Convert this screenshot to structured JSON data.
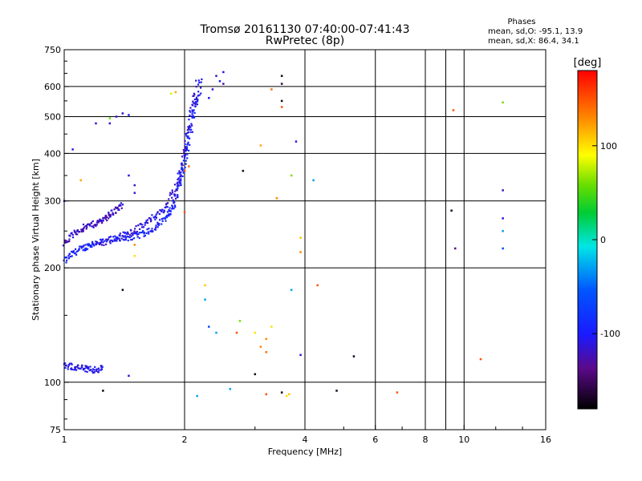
{
  "header": {
    "title_line1": "Tromsø 20161130 07:40:00-07:41:43",
    "title_line2": "RwPretec (8p)",
    "stats_title": "Phases",
    "stats_line1": "mean, sd,O: -95.1, 13.9",
    "stats_line2": "mean, sd,X:  86.4, 34.1"
  },
  "colorbar": {
    "title": "[deg]",
    "min": -180,
    "max": 180,
    "ticks": [
      100,
      0,
      -100
    ],
    "tick_labels": [
      "100",
      "0",
      "-100"
    ]
  },
  "chart_data": {
    "type": "scatter",
    "xlabel": "Frequency [MHz]",
    "ylabel": "Stationary phase Virtual Height [km]",
    "x_scale": "log",
    "y_scale": "log",
    "xlim": [
      1,
      16
    ],
    "ylim": [
      75,
      750
    ],
    "x_ticks": [
      1,
      2,
      4,
      6,
      8,
      9,
      10,
      16
    ],
    "x_tick_labels": [
      "1",
      "2",
      "4",
      "6",
      "8",
      "",
      "10",
      "16"
    ],
    "y_ticks": [
      75,
      100,
      200,
      300,
      400,
      500,
      600,
      750
    ],
    "y_tick_labels": [
      "75",
      "100",
      "200",
      "300",
      "400",
      "500",
      "600",
      "750"
    ],
    "grid": true,
    "color_encoding": "phase [deg]",
    "traces": [
      {
        "name": "O",
        "phase": -95,
        "points": [
          [
            1.0,
            208
          ],
          [
            1.05,
            218
          ],
          [
            1.1,
            224
          ],
          [
            1.15,
            229
          ],
          [
            1.2,
            233
          ],
          [
            1.3,
            237
          ],
          [
            1.4,
            239
          ],
          [
            1.5,
            242
          ],
          [
            1.6,
            247
          ],
          [
            1.7,
            257
          ],
          [
            1.8,
            272
          ],
          [
            1.85,
            285
          ],
          [
            1.9,
            305
          ],
          [
            1.95,
            340
          ],
          [
            2.0,
            380
          ],
          [
            2.05,
            430
          ],
          [
            2.1,
            500
          ],
          [
            2.15,
            560
          ],
          [
            2.2,
            620
          ]
        ]
      },
      {
        "name": "X",
        "phase": -110,
        "points": [
          [
            1.2,
            231
          ],
          [
            1.3,
            236
          ],
          [
            1.4,
            244
          ],
          [
            1.5,
            252
          ],
          [
            1.6,
            262
          ],
          [
            1.7,
            275
          ],
          [
            1.8,
            290
          ],
          [
            1.9,
            320
          ],
          [
            1.95,
            355
          ],
          [
            2.0,
            410
          ],
          [
            2.05,
            470
          ],
          [
            2.1,
            540
          ],
          [
            2.15,
            600
          ]
        ]
      },
      {
        "name": "O-2hop",
        "phase": -120,
        "points": [
          [
            1.0,
            232
          ],
          [
            1.05,
            245
          ],
          [
            1.1,
            253
          ],
          [
            1.15,
            258
          ],
          [
            1.2,
            262
          ],
          [
            1.25,
            268
          ],
          [
            1.3,
            276
          ],
          [
            1.35,
            285
          ],
          [
            1.4,
            292
          ]
        ]
      },
      {
        "name": "E-layer",
        "phase": -105,
        "points": [
          [
            1.0,
            110
          ],
          [
            1.05,
            110
          ],
          [
            1.1,
            109
          ],
          [
            1.15,
            108
          ],
          [
            1.2,
            108
          ],
          [
            1.25,
            109
          ]
        ]
      }
    ],
    "scatter_points": [
      [
        2.4,
        640,
        -120
      ],
      [
        2.5,
        655,
        -110
      ],
      [
        2.45,
        620,
        -100
      ],
      [
        2.5,
        610,
        -130
      ],
      [
        2.35,
        590,
        -115
      ],
      [
        2.3,
        560,
        -105
      ],
      [
        1.3,
        480,
        -110
      ],
      [
        1.2,
        480,
        -115
      ],
      [
        1.35,
        500,
        -110
      ],
      [
        1.4,
        510,
        -120
      ],
      [
        1.45,
        505,
        -100
      ],
      [
        1.3,
        495,
        60
      ],
      [
        1.1,
        340,
        120
      ],
      [
        1.05,
        410,
        -110
      ],
      [
        1.0,
        300,
        -120
      ],
      [
        1.5,
        315,
        -110
      ],
      [
        1.45,
        350,
        -105
      ],
      [
        1.5,
        330,
        -120
      ],
      [
        3.5,
        640,
        -170
      ],
      [
        3.5,
        610,
        -160
      ],
      [
        3.5,
        550,
        -170
      ],
      [
        3.5,
        530,
        150
      ],
      [
        3.3,
        590,
        140
      ],
      [
        3.1,
        420,
        120
      ],
      [
        3.8,
        430,
        -110
      ],
      [
        3.7,
        350,
        60
      ],
      [
        4.2,
        340,
        -30
      ],
      [
        2.0,
        360,
        150
      ],
      [
        2.8,
        360,
        -170
      ],
      [
        2.0,
        280,
        150
      ],
      [
        2.05,
        370,
        140
      ],
      [
        1.9,
        580,
        120
      ],
      [
        1.85,
        575,
        80
      ],
      [
        3.4,
        305,
        130
      ],
      [
        1.5,
        230,
        130
      ],
      [
        1.5,
        215,
        100
      ],
      [
        3.9,
        240,
        110
      ],
      [
        3.9,
        220,
        130
      ],
      [
        3.7,
        175,
        -30
      ],
      [
        4.3,
        180,
        150
      ],
      [
        2.25,
        180,
        110
      ],
      [
        2.25,
        165,
        -30
      ],
      [
        2.3,
        140,
        -60
      ],
      [
        2.4,
        135,
        -30
      ],
      [
        2.7,
        135,
        150
      ],
      [
        2.75,
        145,
        60
      ],
      [
        3.0,
        135,
        100
      ],
      [
        3.3,
        140,
        100
      ],
      [
        3.2,
        130,
        130
      ],
      [
        3.1,
        124,
        130
      ],
      [
        3.2,
        120,
        140
      ],
      [
        3.9,
        118,
        -110
      ],
      [
        5.3,
        117,
        -170
      ],
      [
        3.0,
        105,
        -175
      ],
      [
        1.45,
        104,
        -110
      ],
      [
        1.25,
        95,
        -175
      ],
      [
        2.15,
        92,
        -30
      ],
      [
        2.6,
        96,
        -30
      ],
      [
        3.2,
        93,
        150
      ],
      [
        3.5,
        94,
        -170
      ],
      [
        3.6,
        92,
        100
      ],
      [
        3.65,
        93,
        110
      ],
      [
        4.8,
        95,
        -170
      ],
      [
        6.8,
        94,
        150
      ],
      [
        9.3,
        283,
        -170
      ],
      [
        9.5,
        225,
        -140
      ],
      [
        12.5,
        320,
        -120
      ],
      [
        12.5,
        270,
        -110
      ],
      [
        12.5,
        250,
        -30
      ],
      [
        12.5,
        225,
        -60
      ],
      [
        9.4,
        520,
        150
      ],
      [
        12.5,
        545,
        60
      ],
      [
        11.0,
        115,
        150
      ],
      [
        1.4,
        175,
        -170
      ]
    ]
  }
}
